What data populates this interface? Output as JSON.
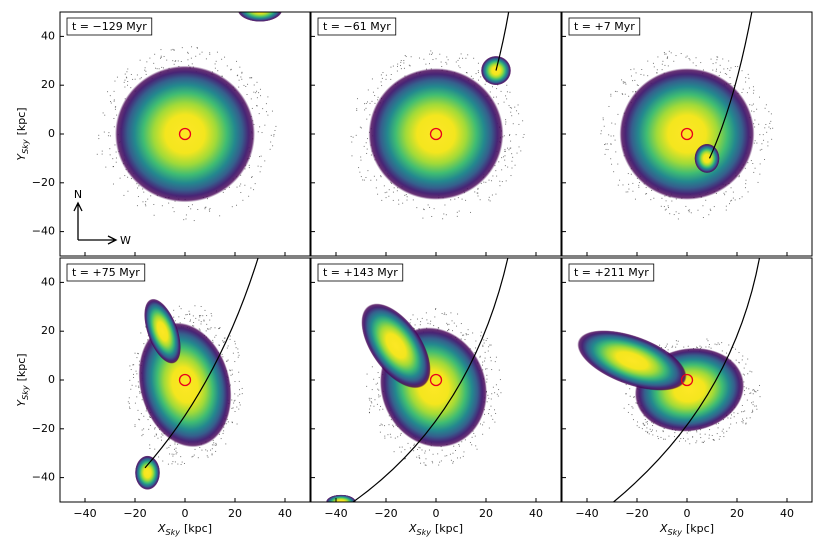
{
  "chart_data": [
    {
      "type": "heatmap",
      "title": "t = −129 Myr",
      "xlim": [
        -50,
        50
      ],
      "ylim": [
        -50,
        50
      ],
      "xticks": [
        -40,
        -20,
        0,
        20,
        40
      ],
      "yticks": [
        {
          "value": -40,
          "label": "−40"
        },
        {
          "value": -20,
          "label": "−20"
        },
        0,
        20,
        40
      ],
      "ylabel": {
        "symbol": "Y",
        "subscript": "Sky",
        "unit": "[kpc]"
      },
      "compass": [
        "N",
        "W"
      ]
    },
    {
      "type": "heatmap",
      "title": "t = −61 Myr",
      "xlim": [
        -50,
        50
      ],
      "ylim": [
        -50,
        50
      ],
      "xticks": [
        -40,
        -20,
        0,
        20,
        40
      ],
      "yticks": [
        -40,
        -20,
        0,
        20,
        40
      ]
    },
    {
      "type": "heatmap",
      "title": "t = +7 Myr",
      "xlim": [
        -50,
        50
      ],
      "ylim": [
        -50,
        50
      ],
      "xticks": [
        -40,
        -20,
        0,
        20,
        40
      ],
      "yticks": [
        -40,
        -20,
        0,
        20,
        40
      ]
    },
    {
      "type": "heatmap",
      "title": "t = +75 Myr",
      "xlim": [
        -50,
        50
      ],
      "ylim": [
        -50,
        50
      ],
      "xticks": [
        {
          "value": -40,
          "label": "−40"
        },
        {
          "value": -20,
          "label": "−20"
        },
        0,
        20,
        40
      ],
      "yticks": [
        {
          "value": -40,
          "label": "−40"
        },
        {
          "value": -20,
          "label": "−20"
        },
        0,
        20,
        40
      ],
      "xlabel": {
        "symbol": "X",
        "subscript": "Sky",
        "unit": "[kpc]"
      },
      "ylabel": {
        "symbol": "Y",
        "subscript": "Sky",
        "unit": "[kpc]"
      }
    },
    {
      "type": "heatmap",
      "title": "t = +143 Myr",
      "xlim": [
        -50,
        50
      ],
      "ylim": [
        -50,
        50
      ],
      "xticks": [
        {
          "value": -40,
          "label": "−40"
        },
        {
          "value": -20,
          "label": "−20"
        },
        0,
        20,
        40
      ],
      "yticks": [
        -40,
        -20,
        0,
        20,
        40
      ],
      "xlabel": {
        "symbol": "X",
        "subscript": "Sky",
        "unit": "[kpc]"
      }
    },
    {
      "type": "heatmap",
      "title": "t = +211 Myr",
      "xlim": [
        -50,
        50
      ],
      "ylim": [
        -50,
        50
      ],
      "xticks": [
        {
          "value": -40,
          "label": "−40"
        },
        {
          "value": -20,
          "label": "−20"
        },
        0,
        20,
        40
      ],
      "yticks": [
        -40,
        -20,
        0,
        20,
        40
      ],
      "xlabel": {
        "symbol": "X",
        "subscript": "Sky",
        "unit": "[kpc]"
      }
    }
  ]
}
